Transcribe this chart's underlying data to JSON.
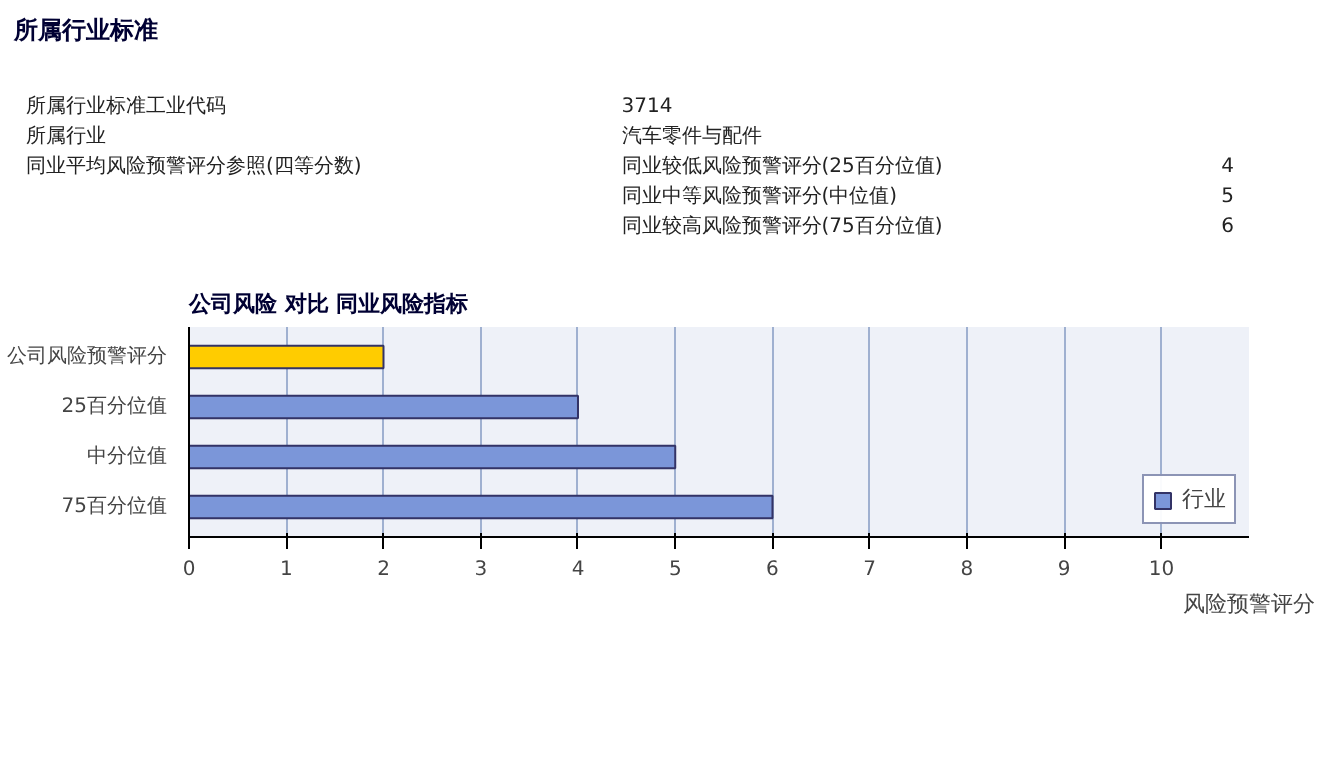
{
  "chart_data": {
    "type": "bar",
    "orientation": "horizontal",
    "title": "公司风险 对比 同业风险指标",
    "xlabel": "风险预警评分",
    "categories": [
      "公司风险预警评分",
      "25百分位值",
      "中分位值",
      "75百分位值"
    ],
    "series": [
      {
        "color": "#ffcc00",
        "values": [
          2,
          null,
          null,
          null
        ]
      },
      {
        "name": "行业",
        "color": "#7b96d9",
        "values": [
          null,
          4,
          5,
          6
        ]
      }
    ],
    "xlim": [
      0,
      10.9
    ],
    "xticks": [
      0,
      1,
      2,
      3,
      4,
      5,
      6,
      7,
      8,
      9,
      10
    ],
    "grid": "x",
    "legend": "bottom right",
    "annotations": [
      "所属行业标准",
      "所属行业标准工业代码",
      "3714",
      "所属行业",
      "汽车零件与配件",
      "同业平均风险预警评分参照(四等分数)",
      "同业较低风险预警评分(25百分位值)",
      "4",
      "同业中等风险预警评分(中位值)",
      "5",
      "同业较高风险预警评分(75百分位值)",
      "6"
    ]
  }
}
